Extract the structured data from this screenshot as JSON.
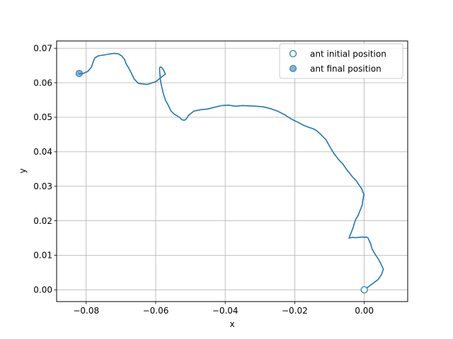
{
  "chart_data": {
    "type": "line",
    "title": "",
    "xlabel": "x",
    "ylabel": "y",
    "xlim": [
      -0.0885,
      0.0125
    ],
    "ylim": [
      -0.0034,
      0.0721
    ],
    "grid": true,
    "legend_position": "top-right",
    "xticks": [
      -0.08,
      -0.06,
      -0.04,
      -0.02,
      0.0
    ],
    "xtick_labels": [
      "−0.08",
      "−0.06",
      "−0.04",
      "−0.02",
      "0.00"
    ],
    "yticks": [
      0.0,
      0.01,
      0.02,
      0.03,
      0.04,
      0.05,
      0.06,
      0.07
    ],
    "ytick_labels": [
      "0.00",
      "0.01",
      "0.02",
      "0.03",
      "0.04",
      "0.05",
      "0.06",
      "0.07"
    ],
    "series": [
      {
        "kind": "line",
        "color": "#1f77b4",
        "x": [
          0.0,
          0.002,
          0.004,
          0.005,
          0.0055,
          0.0048,
          0.004,
          0.003,
          0.0022,
          0.0018,
          0.0013,
          0.0011,
          0.0009,
          0.0005,
          0.0002,
          -0.0005,
          -0.0015,
          -0.0025,
          -0.0035,
          -0.0044,
          -0.0038,
          -0.0032,
          -0.0028,
          -0.0024,
          -0.0018,
          -0.0014,
          -0.001,
          -0.0006,
          -0.0004,
          -0.0001,
          -0.0002,
          -0.0004,
          -0.0006,
          -0.001,
          -0.0016,
          -0.0022,
          -0.003,
          -0.0036,
          -0.0042,
          -0.0048,
          -0.0055,
          -0.0062,
          -0.007,
          -0.0078,
          -0.0086,
          -0.0092,
          -0.0098,
          -0.0103,
          -0.011,
          -0.0118,
          -0.0128,
          -0.0138,
          -0.0148,
          -0.016,
          -0.0175,
          -0.019,
          -0.021,
          -0.023,
          -0.025,
          -0.027,
          -0.029,
          -0.031,
          -0.033,
          -0.035,
          -0.037,
          -0.039,
          -0.041,
          -0.043,
          -0.045,
          -0.047,
          -0.049,
          -0.05,
          -0.0506,
          -0.0512,
          -0.0518,
          -0.0525,
          -0.0532,
          -0.054,
          -0.0548,
          -0.0556,
          -0.0564,
          -0.0572,
          -0.0578,
          -0.0583,
          -0.0586,
          -0.0588,
          -0.0589,
          -0.0588,
          -0.0584,
          -0.0578,
          -0.0572,
          -0.0585,
          -0.06,
          -0.0625,
          -0.065,
          -0.0662,
          -0.067,
          -0.0678,
          -0.0685,
          -0.069,
          -0.0698,
          -0.0708,
          -0.072,
          -0.0735,
          -0.075,
          -0.0765,
          -0.0775,
          -0.078,
          -0.0785,
          -0.0795,
          -0.0808,
          -0.082
        ],
        "y": [
          0.0,
          0.0015,
          0.003,
          0.0045,
          0.006,
          0.0075,
          0.009,
          0.0105,
          0.012,
          0.0135,
          0.0145,
          0.015,
          0.0152,
          0.0153,
          0.0152,
          0.0153,
          0.0152,
          0.0151,
          0.0152,
          0.015,
          0.0165,
          0.018,
          0.0195,
          0.0205,
          0.0215,
          0.0225,
          0.0235,
          0.0245,
          0.026,
          0.0275,
          0.028,
          0.0283,
          0.029,
          0.0297,
          0.0305,
          0.0315,
          0.0323,
          0.033,
          0.0338,
          0.0345,
          0.0355,
          0.0365,
          0.0373,
          0.0383,
          0.0393,
          0.0403,
          0.0413,
          0.0422,
          0.0435,
          0.0443,
          0.0453,
          0.0462,
          0.0467,
          0.0471,
          0.0477,
          0.0485,
          0.0495,
          0.0508,
          0.0518,
          0.0525,
          0.053,
          0.0532,
          0.0533,
          0.0534,
          0.0532,
          0.0535,
          0.0534,
          0.0529,
          0.0524,
          0.0522,
          0.0518,
          0.051,
          0.0505,
          0.0495,
          0.0491,
          0.0493,
          0.05,
          0.0505,
          0.051,
          0.0518,
          0.0535,
          0.055,
          0.0568,
          0.059,
          0.0605,
          0.0625,
          0.064,
          0.0645,
          0.0645,
          0.0638,
          0.0625,
          0.0615,
          0.0603,
          0.0595,
          0.0598,
          0.0611,
          0.0628,
          0.0643,
          0.0655,
          0.0668,
          0.0678,
          0.0684,
          0.0685,
          0.0683,
          0.068,
          0.0678,
          0.0672,
          0.066,
          0.0645,
          0.0633,
          0.0627,
          0.0626
        ]
      }
    ],
    "legend": [
      {
        "label": "ant initial position",
        "marker": "hollow-circle",
        "color": "#1f77b4"
      },
      {
        "label": "ant final position",
        "marker": "filled-circle",
        "color": "#1f77b4"
      }
    ],
    "markers": [
      {
        "name": "ant initial position",
        "x": 0.0,
        "y": 0.0,
        "style": "hollow",
        "color": "#1f77b4"
      },
      {
        "name": "ant final position",
        "x": -0.082,
        "y": 0.0627,
        "style": "filled",
        "color": "#1f77b4"
      }
    ]
  }
}
